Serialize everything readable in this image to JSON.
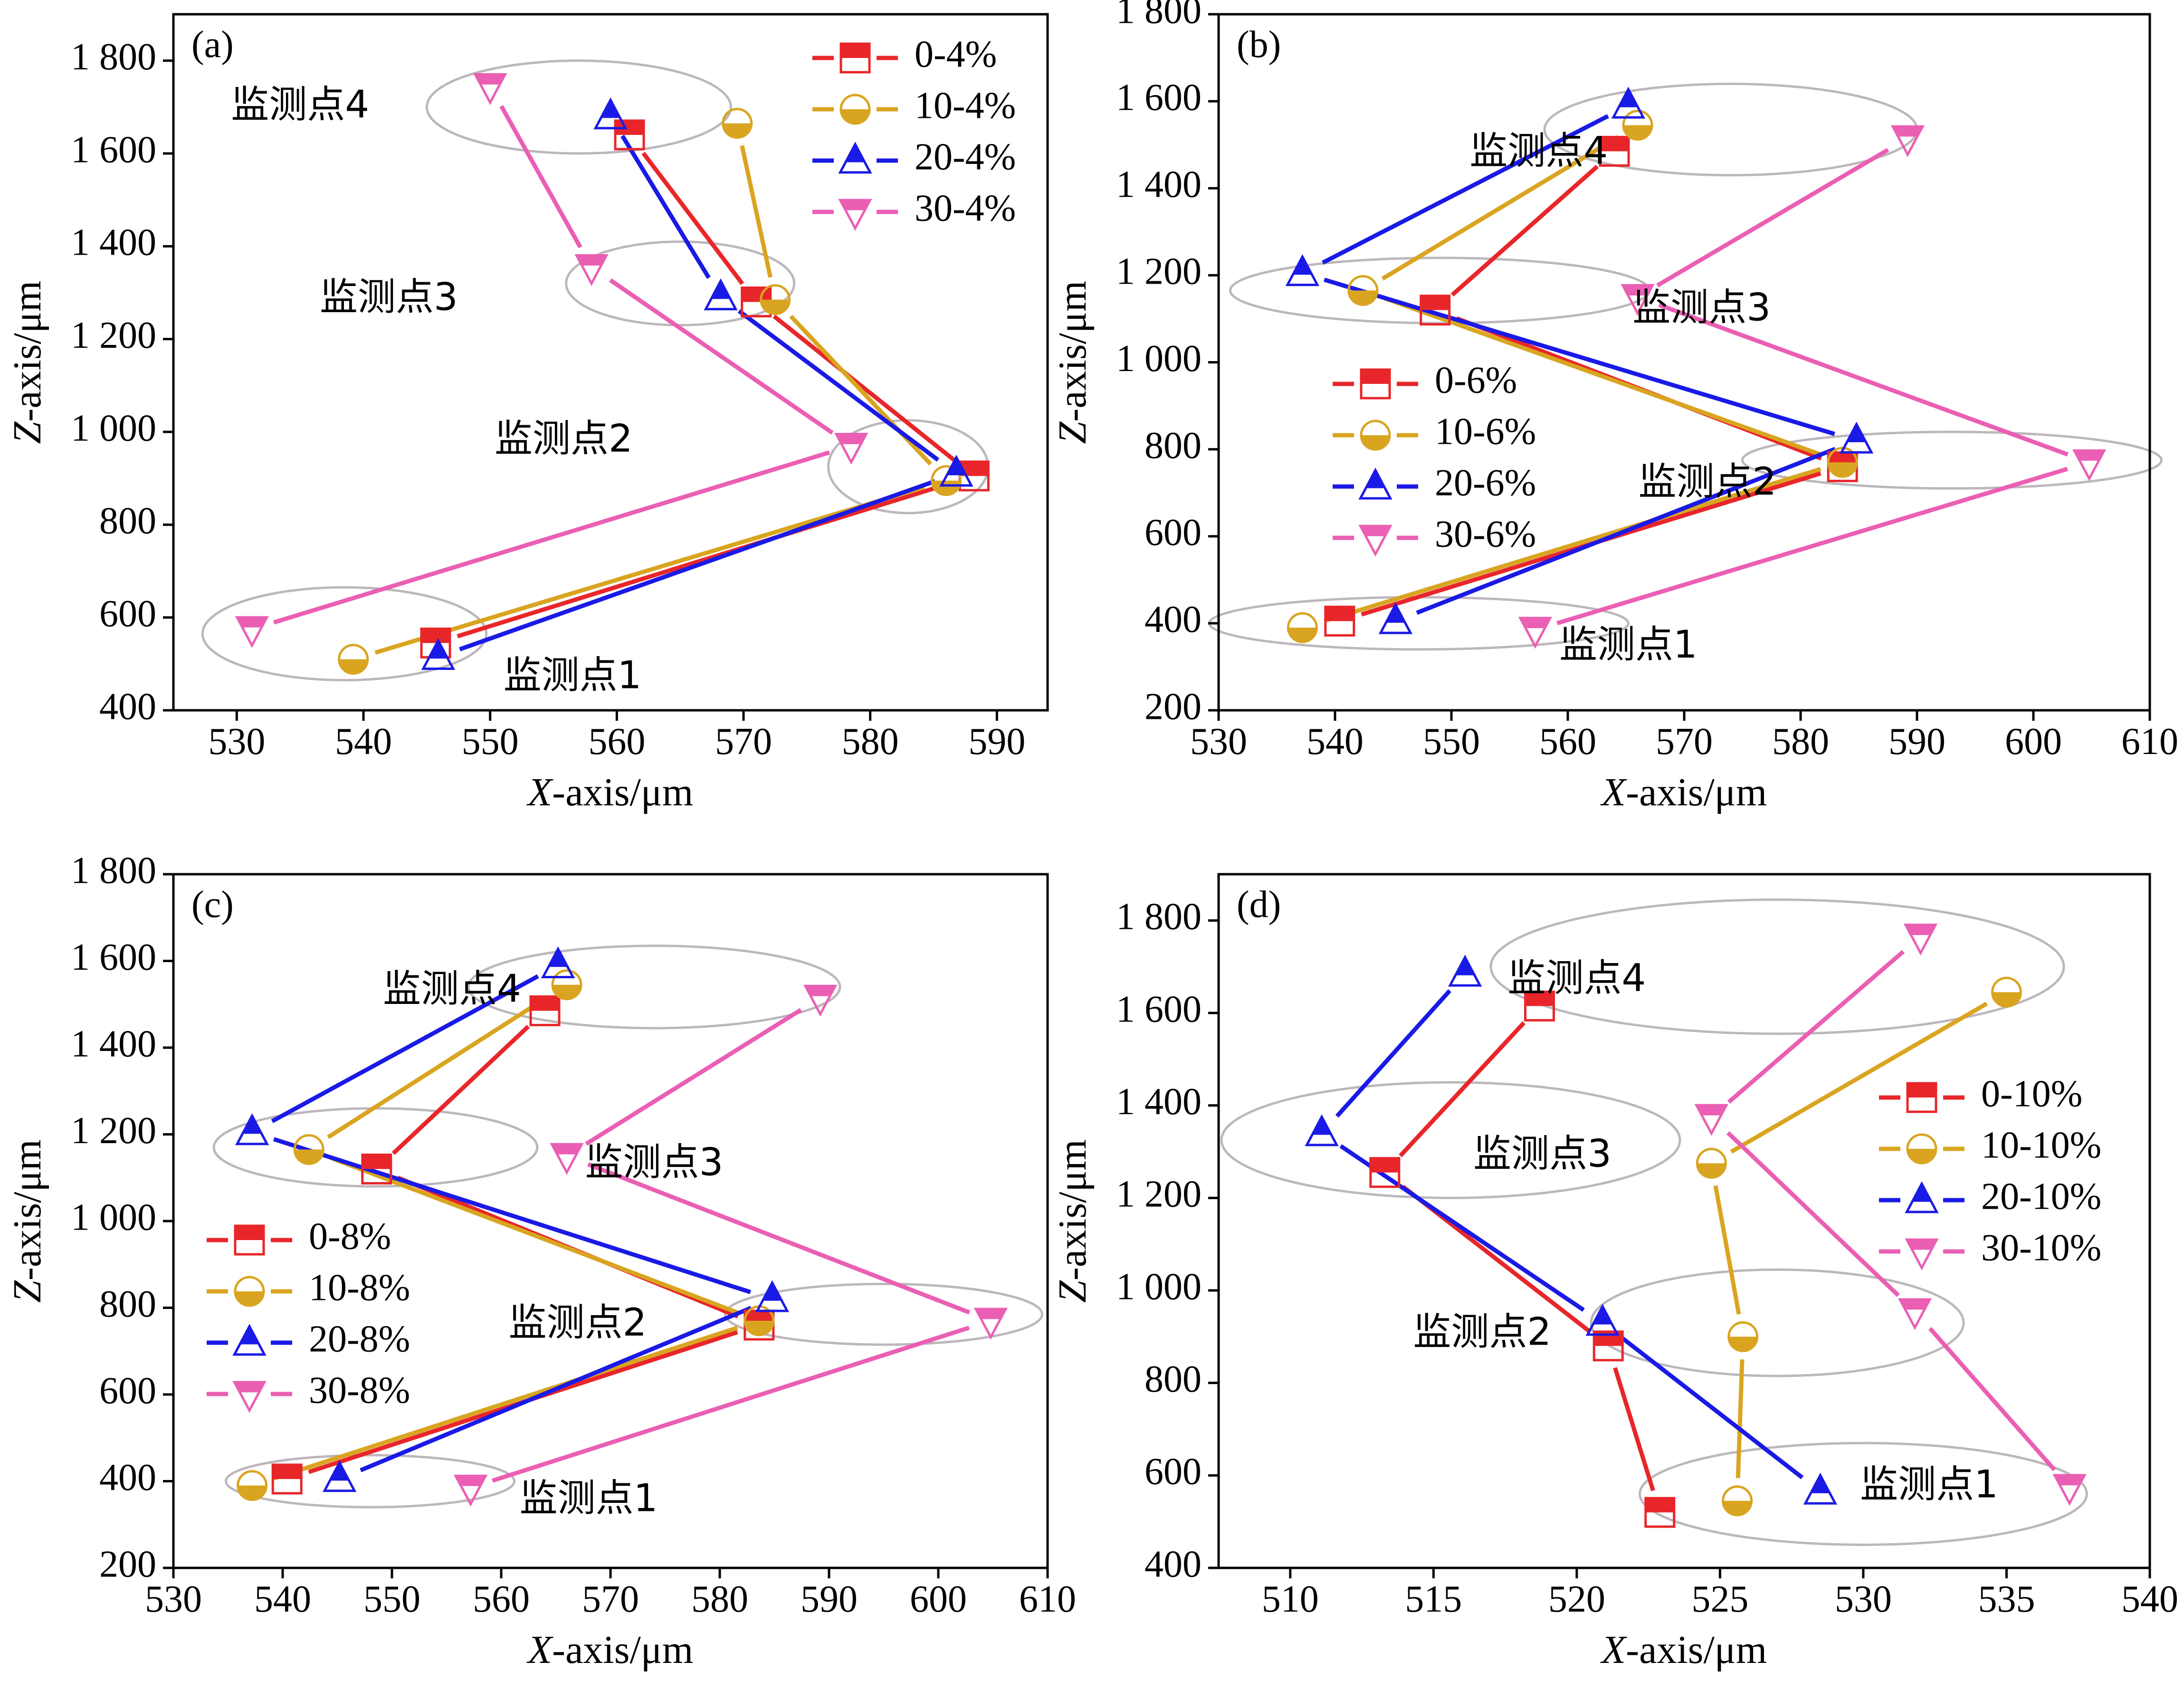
{
  "figure": {
    "colors": {
      "s0": "#e8262a",
      "s10": "#d9a520",
      "s20": "#1a1ae6",
      "s30": "#ea5fb4",
      "ellipse": "#bdb6bc"
    },
    "icons": {
      "s0": "square-half-filled-icon",
      "s10": "circle-half-filled-icon",
      "s20": "triangle-up-half-filled-icon",
      "s30": "triangle-down-half-filled-icon"
    }
  },
  "chart_data": [
    {
      "panel": "(a)",
      "type": "line",
      "xlabel_italic": "X",
      "xlabel_rest": "-axis/μm",
      "ylabel_italic": "Z",
      "ylabel_rest": "-axis/μm",
      "xlim": [
        525,
        594
      ],
      "ylim": [
        400,
        1900
      ],
      "xticks": [
        530,
        540,
        550,
        560,
        570,
        580,
        590
      ],
      "xtick_labels": [
        "530",
        "540",
        "550",
        "560",
        "570",
        "580",
        "590"
      ],
      "yticks": [
        400,
        600,
        800,
        1000,
        1200,
        1400,
        1600,
        1800
      ],
      "ytick_labels": [
        "400",
        "600",
        "800",
        "1 000",
        "1 200",
        "1 400",
        "1 600",
        "1 800"
      ],
      "series": [
        {
          "name": "0-4%",
          "key": "s0",
          "points": [
            [
              545.7,
              545
            ],
            [
              588.2,
              905
            ],
            [
              571.0,
              1280
            ],
            [
              561.0,
              1640
            ]
          ]
        },
        {
          "name": "10-4%",
          "key": "s10",
          "points": [
            [
              539.2,
              510
            ],
            [
              586.0,
              895
            ],
            [
              572.5,
              1285
            ],
            [
              569.5,
              1665
            ]
          ]
        },
        {
          "name": "20-4%",
          "key": "s20",
          "points": [
            [
              545.9,
              515
            ],
            [
              586.8,
              910
            ],
            [
              568.2,
              1290
            ],
            [
              559.5,
              1680
            ]
          ]
        },
        {
          "name": "30-4%",
          "key": "s30",
          "points": [
            [
              531.2,
              575
            ],
            [
              578.5,
              970
            ],
            [
              558.0,
              1355
            ],
            [
              550.0,
              1745
            ]
          ]
        }
      ],
      "groups": [
        {
          "label": "监测点1",
          "cx": 538.5,
          "cy": 565,
          "rx": 11.2,
          "ry": 100,
          "lx": 556.5,
          "ly": 470
        },
        {
          "label": "监测点2",
          "cx": 583.0,
          "cy": 925,
          "rx": 6.3,
          "ry": 100,
          "lx": 555.8,
          "ly": 980
        },
        {
          "label": "监测点3",
          "cx": 565.0,
          "cy": 1320,
          "rx": 9.0,
          "ry": 90,
          "lx": 542.0,
          "ly": 1285
        },
        {
          "label": "监测点4",
          "cx": 557.0,
          "cy": 1700,
          "rx": 12.0,
          "ry": 100,
          "lx": 535.0,
          "ly": 1700
        }
      ],
      "legend_pos": "top-right"
    },
    {
      "panel": "(b)",
      "type": "line",
      "xlabel_italic": "X",
      "xlabel_rest": "-axis/μm",
      "ylabel_italic": "Z",
      "ylabel_rest": "-axis/μm",
      "xlim": [
        530,
        610
      ],
      "ylim": [
        200,
        1800
      ],
      "xticks": [
        530,
        540,
        550,
        560,
        570,
        580,
        590,
        600,
        610
      ],
      "xtick_labels": [
        "530",
        "540",
        "550",
        "560",
        "570",
        "580",
        "590",
        "600",
        "610"
      ],
      "yticks": [
        200,
        400,
        600,
        800,
        1000,
        1200,
        1400,
        1600,
        1800
      ],
      "ytick_labels": [
        "200",
        "400",
        "600",
        "800",
        "1 000",
        "1 200",
        "1 400",
        "1 600",
        "1 800"
      ],
      "series": [
        {
          "name": "0-6%",
          "key": "s0",
          "points": [
            [
              540.4,
              405
            ],
            [
              583.6,
              760
            ],
            [
              548.6,
              1120
            ],
            [
              564.0,
              1485
            ]
          ]
        },
        {
          "name": "10-6%",
          "key": "s10",
          "points": [
            [
              537.2,
              390
            ],
            [
              583.6,
              770
            ],
            [
              542.4,
              1165
            ],
            [
              566.0,
              1545
            ]
          ]
        },
        {
          "name": "20-6%",
          "key": "s20",
          "points": [
            [
              545.2,
              405
            ],
            [
              584.8,
              820
            ],
            [
              537.2,
              1205
            ],
            [
              565.2,
              1590
            ]
          ]
        },
        {
          "name": "30-6%",
          "key": "s30",
          "points": [
            [
              557.2,
              385
            ],
            [
              604.8,
              770
            ],
            [
              566.0,
              1150
            ],
            [
              589.2,
              1515
            ]
          ]
        }
      ],
      "groups": [
        {
          "label": "监测点1",
          "cx": 547.2,
          "cy": 400,
          "rx": 18.0,
          "ry": 60,
          "lx": 565.2,
          "ly": 345
        },
        {
          "label": "监测点2",
          "cx": 593.0,
          "cy": 775,
          "rx": 18.0,
          "ry": 65,
          "lx": 572.0,
          "ly": 720
        },
        {
          "label": "监测点3",
          "cx": 549.0,
          "cy": 1165,
          "rx": 18.0,
          "ry": 75,
          "lx": 571.5,
          "ly": 1120
        },
        {
          "label": "监测点4",
          "cx": 574.0,
          "cy": 1535,
          "rx": 16.0,
          "ry": 105,
          "lx": 557.5,
          "ly": 1480
        }
      ],
      "legend_pos": "middle-left"
    },
    {
      "panel": "(c)",
      "type": "line",
      "xlabel_italic": "X",
      "xlabel_rest": "-axis/μm",
      "ylabel_italic": "Z",
      "ylabel_rest": "-axis/μm",
      "xlim": [
        530,
        610
      ],
      "ylim": [
        200,
        1800
      ],
      "xticks": [
        530,
        540,
        550,
        560,
        570,
        580,
        590,
        600,
        610
      ],
      "xtick_labels": [
        "530",
        "540",
        "550",
        "560",
        "570",
        "580",
        "590",
        "600",
        "610"
      ],
      "yticks": [
        200,
        400,
        600,
        800,
        1000,
        1200,
        1400,
        1600,
        1800
      ],
      "ytick_labels": [
        "200",
        "400",
        "600",
        "800",
        "1 000",
        "1 200",
        "1 400",
        "1 600",
        "1 800"
      ],
      "series": [
        {
          "name": "0-8%",
          "key": "s0",
          "points": [
            [
              540.4,
              405
            ],
            [
              583.6,
              760
            ],
            [
              548.6,
              1120
            ],
            [
              564.0,
              1485
            ]
          ]
        },
        {
          "name": "10-8%",
          "key": "s10",
          "points": [
            [
              537.2,
              390
            ],
            [
              583.6,
              770
            ],
            [
              542.4,
              1165
            ],
            [
              566.0,
              1545
            ]
          ]
        },
        {
          "name": "20-8%",
          "key": "s20",
          "points": [
            [
              545.2,
              405
            ],
            [
              584.8,
              820
            ],
            [
              537.2,
              1205
            ],
            [
              565.2,
              1590
            ]
          ]
        },
        {
          "name": "30-8%",
          "key": "s30",
          "points": [
            [
              557.2,
              385
            ],
            [
              604.8,
              770
            ],
            [
              566.0,
              1150
            ],
            [
              589.2,
              1515
            ]
          ]
        }
      ],
      "groups": [
        {
          "label": "监测点1",
          "cx": 548.0,
          "cy": 400,
          "rx": 13.2,
          "ry": 60,
          "lx": 568.0,
          "ly": 355
        },
        {
          "label": "监测点2",
          "cx": 595.0,
          "cy": 785,
          "rx": 14.5,
          "ry": 70,
          "lx": 567.0,
          "ly": 760
        },
        {
          "label": "监测点3",
          "cx": 548.5,
          "cy": 1170,
          "rx": 14.8,
          "ry": 90,
          "lx": 574.0,
          "ly": 1130
        },
        {
          "label": "监测点4",
          "cx": 574.0,
          "cy": 1540,
          "rx": 17.0,
          "ry": 95,
          "lx": 555.5,
          "ly": 1530
        }
      ],
      "legend_pos": "middle-left"
    },
    {
      "panel": "(d)",
      "type": "line",
      "xlabel_italic": "X",
      "xlabel_rest": "-axis/μm",
      "ylabel_italic": "Z",
      "ylabel_rest": "-axis/μm",
      "xlim": [
        507.5,
        540
      ],
      "ylim": [
        400,
        1900
      ],
      "xticks": [
        510,
        515,
        520,
        525,
        530,
        535,
        540
      ],
      "xtick_labels": [
        "510",
        "515",
        "520",
        "525",
        "530",
        "535",
        "540"
      ],
      "yticks": [
        400,
        600,
        800,
        1000,
        1200,
        1400,
        1600,
        1800
      ],
      "ytick_labels": [
        "400",
        "600",
        "800",
        "1 000",
        "1 200",
        "1 400",
        "1 600",
        "1 800"
      ],
      "series": [
        {
          "name": "0-10%",
          "key": "s0",
          "points": [
            [
              522.9,
              520
            ],
            [
              521.1,
              880
            ],
            [
              513.3,
              1255
            ],
            [
              518.7,
              1615
            ]
          ]
        },
        {
          "name": "10-10%",
          "key": "s10",
          "points": [
            [
              525.6,
              545
            ],
            [
              525.8,
              900
            ],
            [
              524.7,
              1275
            ],
            [
              535.0,
              1645
            ]
          ]
        },
        {
          "name": "20-10%",
          "key": "s20",
          "points": [
            [
              528.5,
              565
            ],
            [
              520.9,
              930
            ],
            [
              511.1,
              1340
            ],
            [
              516.1,
              1685
            ]
          ]
        },
        {
          "name": "30-10%",
          "key": "s30",
          "points": [
            [
              537.2,
              575
            ],
            [
              531.8,
              955
            ],
            [
              524.7,
              1375
            ],
            [
              532.0,
              1765
            ]
          ]
        }
      ],
      "groups": [
        {
          "label": "监测点1",
          "cx": 530.0,
          "cy": 560,
          "rx": 7.8,
          "ry": 110,
          "lx": 532.3,
          "ly": 575
        },
        {
          "label": "监测点2",
          "cx": 527.0,
          "cy": 930,
          "rx": 6.5,
          "ry": 115,
          "lx": 516.7,
          "ly": 905
        },
        {
          "label": "监测点3",
          "cx": 515.6,
          "cy": 1325,
          "rx": 8.0,
          "ry": 125,
          "lx": 518.8,
          "ly": 1290
        },
        {
          "label": "监测点4",
          "cx": 527.0,
          "cy": 1700,
          "rx": 10.0,
          "ry": 145,
          "lx": 520.0,
          "ly": 1670
        }
      ],
      "legend_pos": "middle-right"
    }
  ]
}
